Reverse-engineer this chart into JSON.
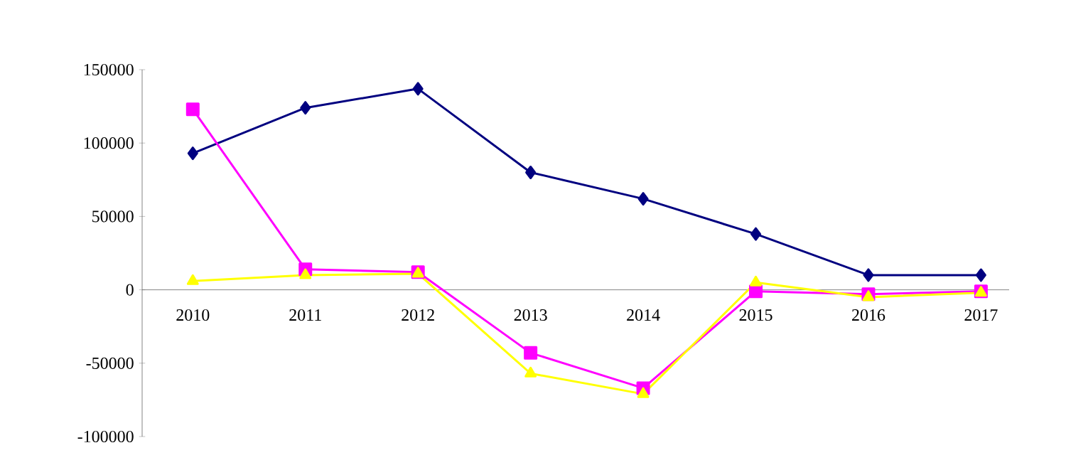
{
  "chart_data": {
    "type": "line",
    "categories": [
      "2010",
      "2011",
      "2012",
      "2013",
      "2014",
      "2015",
      "2016",
      "2017"
    ],
    "series": [
      {
        "color": "#000080",
        "marker": "diamond",
        "values": [
          93000,
          124000,
          137000,
          80000,
          62000,
          38000,
          10000,
          10000
        ]
      },
      {
        "color": "#ff00ff",
        "marker": "square",
        "values": [
          123000,
          14000,
          12000,
          -43000,
          -67000,
          -1000,
          -3000,
          -1000
        ]
      },
      {
        "color": "#ffff00",
        "marker": "triangle",
        "values": [
          6000,
          10000,
          11000,
          -57000,
          -71000,
          5000,
          -5000,
          -2000
        ]
      }
    ],
    "ylim": [
      -100000,
      150000
    ],
    "yticks": [
      -100000,
      -50000,
      0,
      50000,
      100000,
      150000
    ],
    "grid": false,
    "line_style": "solid"
  }
}
